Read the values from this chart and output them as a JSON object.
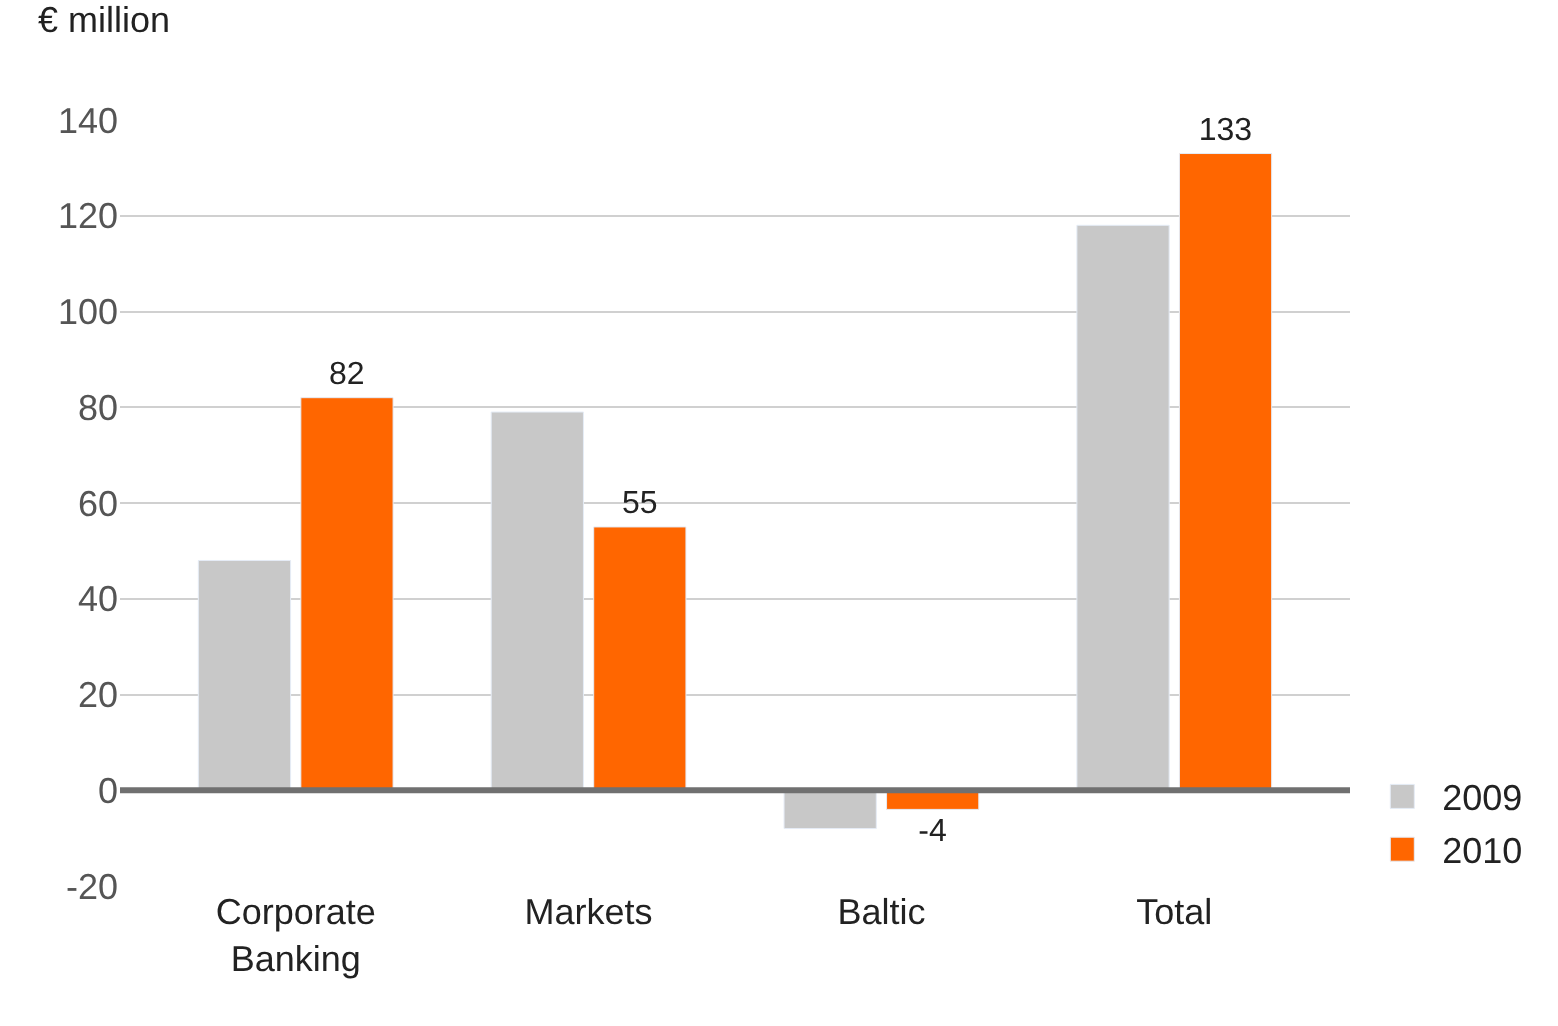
{
  "chart_data": {
    "type": "bar",
    "ylabel": "€ million",
    "categories": [
      "Corporate Banking",
      "Markets",
      "Baltic",
      "Total"
    ],
    "series": [
      {
        "name": "2009",
        "color": "#c8c8c8",
        "values": [
          48,
          79,
          -8,
          118
        ]
      },
      {
        "name": "2010",
        "color": "#ff6600",
        "values": [
          82,
          55,
          -4,
          133
        ],
        "value_labels": [
          "82",
          "55",
          "-4",
          "133"
        ]
      }
    ],
    "ylim": [
      -20,
      140
    ],
    "yticks": [
      -20,
      0,
      20,
      40,
      60,
      80,
      100,
      120,
      140
    ],
    "grid": "y",
    "legend": "bottom right",
    "ref_lines": [
      {
        "axis": "y",
        "value": 0,
        "color": "#707070"
      }
    ]
  }
}
